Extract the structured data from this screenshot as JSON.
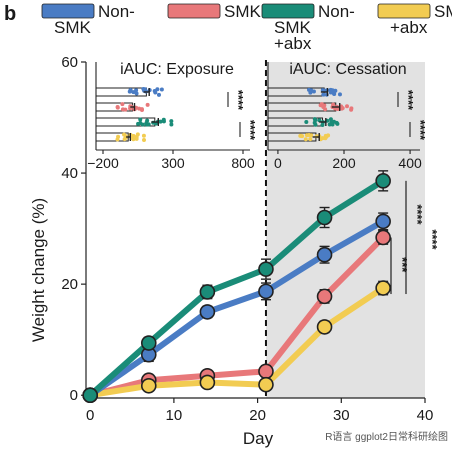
{
  "panel_letter": "b",
  "watermark": "R语言 ggplot2日常科研绘图",
  "colors": {
    "non_smk": "#4a7cc4",
    "smk": "#e8787a",
    "non_smk_abx": "#1a8c78",
    "smk_abx": "#f2cc52",
    "cessation_bg": "#e2e2e2"
  },
  "legend": [
    {
      "key": "non_smk",
      "label_lines": [
        "Non-",
        "SMK"
      ]
    },
    {
      "key": "smk",
      "label_lines": [
        "SMK"
      ]
    },
    {
      "key": "non_smk_abx",
      "label_lines": [
        "Non-",
        "SMK",
        "+abx"
      ]
    },
    {
      "key": "smk_abx",
      "label_lines": [
        "SMK",
        "+abx"
      ]
    }
  ],
  "chart_data": [
    {
      "type": "line",
      "title": "",
      "xlabel": "Day",
      "ylabel": "Weight change (%)",
      "xlim": [
        -0.5,
        40
      ],
      "ylim": [
        -0.5,
        60
      ],
      "xticks": [
        0,
        10,
        20,
        30,
        40
      ],
      "yticks": [
        0,
        20,
        40,
        60
      ],
      "shaded_region": {
        "label": "Cessation",
        "x_from": 21,
        "x_to": 40
      },
      "vline_x": 21,
      "x": [
        0,
        7,
        14,
        21,
        28,
        35
      ],
      "series": [
        {
          "name": "Non-SMK",
          "color_key": "non_smk",
          "values": [
            0,
            7.3,
            15.0,
            18.7,
            25.3,
            31.3
          ],
          "err": [
            0.3,
            1.2,
            1.0,
            1.5,
            1.5,
            1.5
          ]
        },
        {
          "name": "SMK",
          "color_key": "smk",
          "values": [
            0,
            2.7,
            3.5,
            4.3,
            17.8,
            28.4
          ],
          "err": [
            0.3,
            0.8,
            0.8,
            1.0,
            1.2,
            1.2
          ]
        },
        {
          "name": "Non-SMK +abx",
          "color_key": "non_smk_abx",
          "values": [
            0,
            9.4,
            18.6,
            22.7,
            32.0,
            38.6
          ],
          "err": [
            0.3,
            1.0,
            1.2,
            1.8,
            1.8,
            1.8
          ]
        },
        {
          "name": "SMK +abx",
          "color_key": "smk_abx",
          "values": [
            0,
            1.7,
            2.3,
            1.9,
            12.3,
            19.3
          ],
          "err": [
            0.3,
            0.6,
            0.6,
            0.8,
            1.0,
            1.2
          ]
        }
      ],
      "significance": [
        "****",
        "***",
        "****"
      ]
    },
    {
      "type": "scatter",
      "title": "iAUC: Exposure",
      "xlim": [
        -250,
        850
      ],
      "xticks": [
        -200,
        300,
        800
      ],
      "xtick_labels": [
        "−200",
        "300",
        "800"
      ],
      "groups": [
        {
          "name": "Non-SMK",
          "color_key": "non_smk",
          "mean": 110,
          "sem": 20
        },
        {
          "name": "SMK",
          "color_key": "smk",
          "mean": 10,
          "sem": 15
        },
        {
          "name": "Non-SMK +abx",
          "color_key": "non_smk_abx",
          "mean": 170,
          "sem": 25
        },
        {
          "name": "SMK +abx",
          "color_key": "smk_abx",
          "mean": -20,
          "sem": 15
        }
      ],
      "significance": [
        "****",
        "****"
      ]
    },
    {
      "type": "scatter",
      "title": "iAUC: Cessation",
      "xlim": [
        -30,
        430
      ],
      "xticks": [
        0,
        200,
        400
      ],
      "xtick_labels": [
        "0",
        "200",
        "400"
      ],
      "groups": [
        {
          "name": "Non-SMK",
          "color_key": "non_smk",
          "mean": 140,
          "sem": 10
        },
        {
          "name": "SMK",
          "color_key": "smk",
          "mean": 175,
          "sem": 12
        },
        {
          "name": "Non-SMK +abx",
          "color_key": "non_smk_abx",
          "mean": 135,
          "sem": 10
        },
        {
          "name": "SMK +abx",
          "color_key": "smk_abx",
          "mean": 115,
          "sem": 10
        }
      ],
      "significance": [
        "****",
        "****"
      ]
    }
  ]
}
